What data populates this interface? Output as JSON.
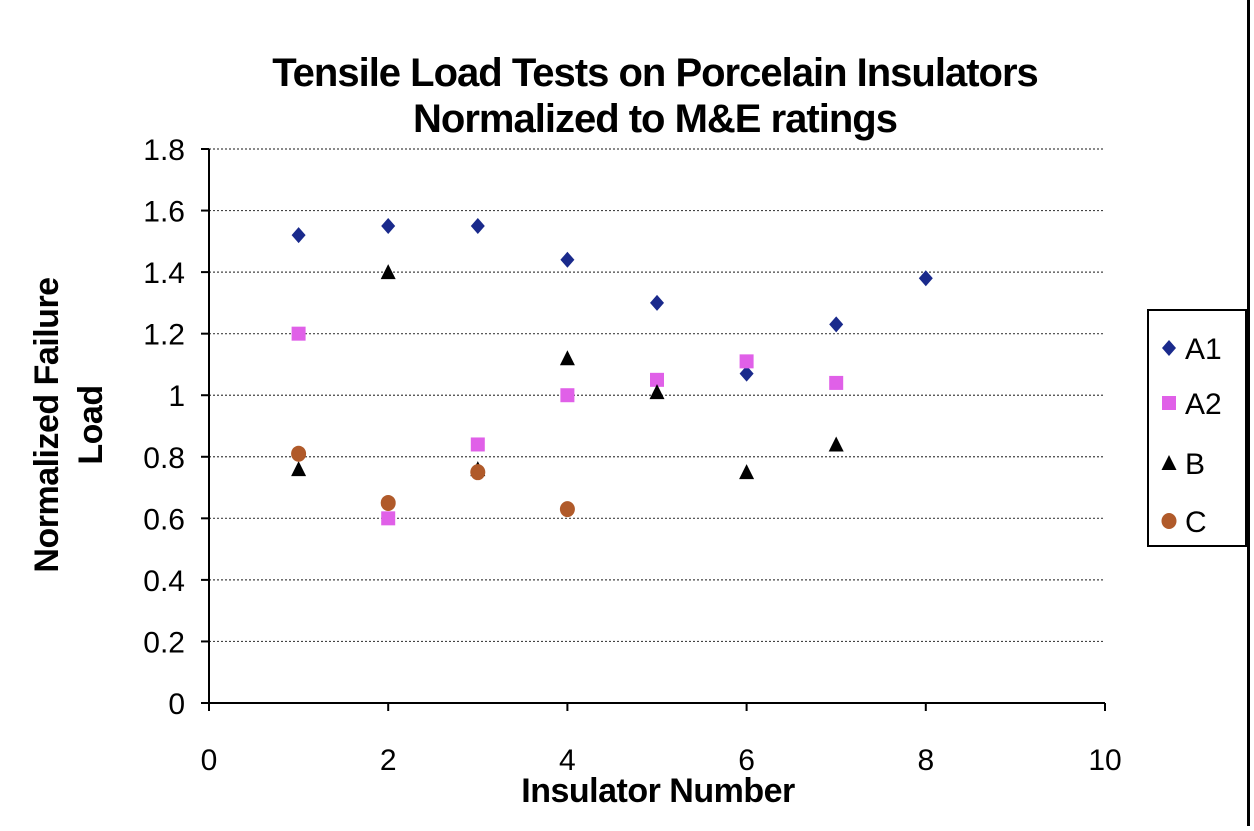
{
  "chart_data": {
    "type": "scatter",
    "title_line1": "Tensile Load Tests on Porcelain Insulators",
    "title_line2": "Normalized to M&E ratings",
    "xlabel": "Insulator Number",
    "ylabel_line1": "Normalized Failure",
    "ylabel_line2": "Load",
    "xlim": [
      0,
      10
    ],
    "ylim": [
      0,
      1.8
    ],
    "xticks": [
      "0",
      "2",
      "4",
      "6",
      "8",
      "10"
    ],
    "yticks": [
      "0",
      "0.2",
      "0.4",
      "0.6",
      "0.8",
      "1",
      "1.2",
      "1.4",
      "1.6",
      "1.8"
    ],
    "grid": "horizontal dotted",
    "legend_position": "right",
    "series": [
      {
        "name": "A1",
        "marker": "diamond",
        "color": "#1a2a8c",
        "points": [
          [
            1,
            1.52
          ],
          [
            2,
            1.55
          ],
          [
            3,
            1.55
          ],
          [
            4,
            1.44
          ],
          [
            5,
            1.3
          ],
          [
            6,
            1.07
          ],
          [
            7,
            1.23
          ],
          [
            8,
            1.38
          ]
        ]
      },
      {
        "name": "A2",
        "marker": "square",
        "color": "#e060e8",
        "points": [
          [
            1,
            1.2
          ],
          [
            2,
            0.6
          ],
          [
            3,
            0.84
          ],
          [
            4,
            1.0
          ],
          [
            5,
            1.05
          ],
          [
            6,
            1.11
          ],
          [
            7,
            1.04
          ]
        ]
      },
      {
        "name": "B",
        "marker": "triangle",
        "color": "#000000",
        "points": [
          [
            1,
            0.76
          ],
          [
            2,
            1.4
          ],
          [
            3,
            0.76
          ],
          [
            4,
            1.12
          ],
          [
            5,
            1.01
          ],
          [
            6,
            0.75
          ],
          [
            7,
            0.84
          ]
        ]
      },
      {
        "name": "C",
        "marker": "circle",
        "color": "#b05a2a",
        "points": [
          [
            1,
            0.81
          ],
          [
            2,
            0.65
          ],
          [
            3,
            0.75
          ],
          [
            4,
            0.63
          ]
        ]
      }
    ]
  }
}
